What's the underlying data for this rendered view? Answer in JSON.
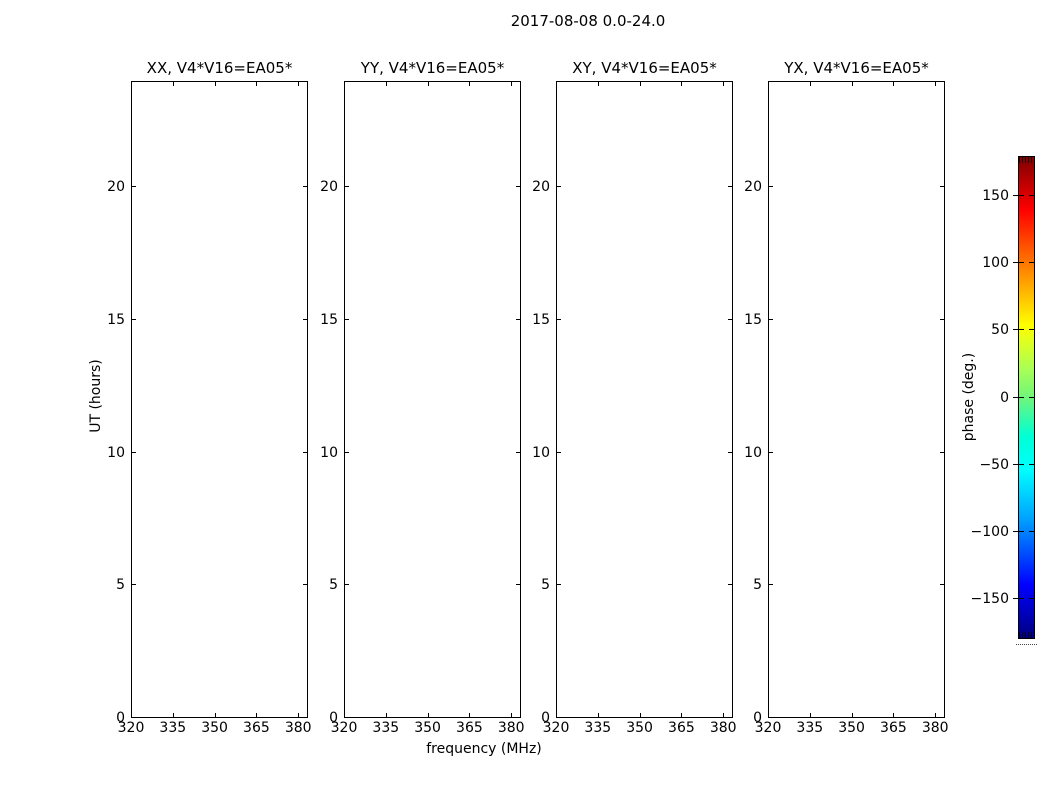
{
  "figure": {
    "title": "2017-08-08 0.0-24.0",
    "xlabel": "frequency (MHz)",
    "ylabel": "UT (hours)",
    "background": "#ffffff",
    "frame_color": "#000000"
  },
  "panels": [
    {
      "title": "XX, V4*V16=EA05*"
    },
    {
      "title": "YY, V4*V16=EA05*"
    },
    {
      "title": "XY, V4*V16=EA05*"
    },
    {
      "title": "YX, V4*V16=EA05*"
    }
  ],
  "axes": {
    "x_tick_labels": [
      "320",
      "335",
      "350",
      "365",
      "380"
    ],
    "x_tick_values": [
      320,
      335,
      350,
      365,
      380
    ],
    "x_range": [
      320,
      383.5
    ],
    "y_tick_labels": [
      "0",
      "5",
      "10",
      "15",
      "20"
    ],
    "y_tick_values": [
      0,
      5,
      10,
      15,
      20
    ],
    "y_range": [
      0,
      24
    ]
  },
  "colorbar": {
    "label": "phase (deg.)",
    "tick_labels": [
      "150",
      "100",
      "50",
      "0",
      "−50",
      "−100",
      "−150"
    ],
    "tick_values": [
      150,
      100,
      50,
      0,
      -50,
      -100,
      -150
    ],
    "range": [
      -180,
      180
    ],
    "colormap": "jet",
    "colors": {
      "top": "#7f0000",
      "red": "#ff0000",
      "yellow": "#ffff00",
      "mid_green": "#70f57a",
      "cyan": "#00ffff",
      "blue": "#0000ff",
      "bottom": "#00007f"
    }
  },
  "chart_data": [
    {
      "type": "heatmap",
      "title": "XX, V4*V16=EA05*",
      "xlabel": "frequency (MHz)",
      "ylabel": "UT (hours)",
      "xlim": [
        320,
        383.5
      ],
      "ylim": [
        0,
        24
      ],
      "xticks": [
        320,
        335,
        350,
        365,
        380
      ],
      "yticks": [
        0,
        5,
        10,
        15,
        20
      ],
      "values": [],
      "colorbar": {
        "label": "phase (deg.)",
        "ticks": [
          150,
          100,
          50,
          0,
          -50,
          -100,
          -150
        ],
        "clim": [
          -180,
          180
        ],
        "colormap": "jet"
      }
    },
    {
      "type": "heatmap",
      "title": "YY, V4*V16=EA05*",
      "xlabel": "frequency (MHz)",
      "ylabel": "UT (hours)",
      "xlim": [
        320,
        383.5
      ],
      "ylim": [
        0,
        24
      ],
      "xticks": [
        320,
        335,
        350,
        365,
        380
      ],
      "yticks": [
        0,
        5,
        10,
        15,
        20
      ],
      "values": [],
      "colorbar": {
        "label": "phase (deg.)",
        "ticks": [
          150,
          100,
          50,
          0,
          -50,
          -100,
          -150
        ],
        "clim": [
          -180,
          180
        ],
        "colormap": "jet"
      }
    },
    {
      "type": "heatmap",
      "title": "XY, V4*V16=EA05*",
      "xlabel": "frequency (MHz)",
      "ylabel": "UT (hours)",
      "xlim": [
        320,
        383.5
      ],
      "ylim": [
        0,
        24
      ],
      "xticks": [
        320,
        335,
        350,
        365,
        380
      ],
      "yticks": [
        0,
        5,
        10,
        15,
        20
      ],
      "values": [],
      "colorbar": {
        "label": "phase (deg.)",
        "ticks": [
          150,
          100,
          50,
          0,
          -50,
          -100,
          -150
        ],
        "clim": [
          -180,
          180
        ],
        "colormap": "jet"
      }
    },
    {
      "type": "heatmap",
      "title": "YX, V4*V16=EA05*",
      "xlabel": "frequency (MHz)",
      "ylabel": "UT (hours)",
      "xlim": [
        320,
        383.5
      ],
      "ylim": [
        0,
        24
      ],
      "xticks": [
        320,
        335,
        350,
        365,
        380
      ],
      "yticks": [
        0,
        5,
        10,
        15,
        20
      ],
      "values": [],
      "colorbar": {
        "label": "phase (deg.)",
        "ticks": [
          150,
          100,
          50,
          0,
          -50,
          -100,
          -150
        ],
        "clim": [
          -180,
          180
        ],
        "colormap": "jet"
      }
    }
  ]
}
